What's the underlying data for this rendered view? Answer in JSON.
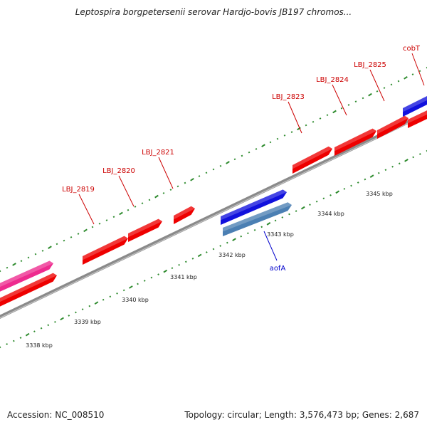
{
  "title": "Leptospira borgpetersenii serovar Hardjo-bovis JB197 chromos...",
  "footer": {
    "accession": "Accession: NC_008510",
    "stats": "Topology: circular; Length: 3,576,473 bp; Genes: 2,687"
  },
  "colors": {
    "forward_gene": "#ee0000",
    "reverse_gene": "#1111dd",
    "rna_feature": "#4b7fb3",
    "pink_feature": "#ee2b8f",
    "ruler_tick": "#2e8b2e",
    "backbone": "#888888",
    "red_label": "#cc0000",
    "blue_label": "#0000cc"
  },
  "scale_labels": [
    "3338 kbp",
    "3339 kbp",
    "3340 kbp",
    "3341 kbp",
    "3342 kbp",
    "3343 kbp",
    "3344 kbp",
    "3345 kbp"
  ],
  "gene_labels": [
    {
      "name": "LBJ_2819",
      "strand": "forward"
    },
    {
      "name": "LBJ_2820",
      "strand": "forward"
    },
    {
      "name": "LBJ_2821",
      "strand": "forward"
    },
    {
      "name": "LBJ_2823",
      "strand": "forward"
    },
    {
      "name": "LBJ_2824",
      "strand": "forward"
    },
    {
      "name": "LBJ_2825",
      "strand": "forward"
    },
    {
      "name": "cobT",
      "strand": "forward"
    },
    {
      "name": "aofA",
      "strand": "reverse"
    }
  ]
}
